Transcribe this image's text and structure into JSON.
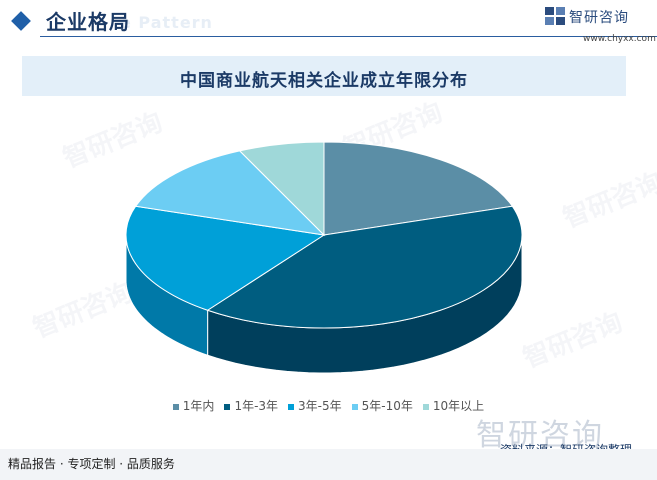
{
  "header": {
    "title": "企业格局",
    "bg_text": "e Pattern"
  },
  "brand": {
    "name": "智研咨询",
    "url": "www.chyxx.com"
  },
  "colors": {
    "accent": "#1f5fa8",
    "title_bar": "#e3eff9"
  },
  "chart_data": {
    "type": "pie",
    "title": "中国商业航天相关企业成立年限分布",
    "style": "3d",
    "categories": [
      "1年内",
      "1年-3年",
      "3年-5年",
      "5年-10年",
      "10年以上"
    ],
    "values": [
      20,
      40,
      20,
      13,
      7
    ],
    "colors": [
      "#5b8ea6",
      "#005d80",
      "#00a0d8",
      "#6ccdf3",
      "#9fd8d9"
    ],
    "side_colors": [
      "#3f6c80",
      "#003f5c",
      "#0079a8",
      "#47a9cf",
      "#78b3b4"
    ],
    "legend_position": "bottom"
  },
  "watermark": {
    "text": "智研咨询"
  },
  "source": {
    "text": "资料来源：智研咨询整理"
  },
  "footer": {
    "text": "精品报告 · 专项定制 · 品质服务"
  }
}
